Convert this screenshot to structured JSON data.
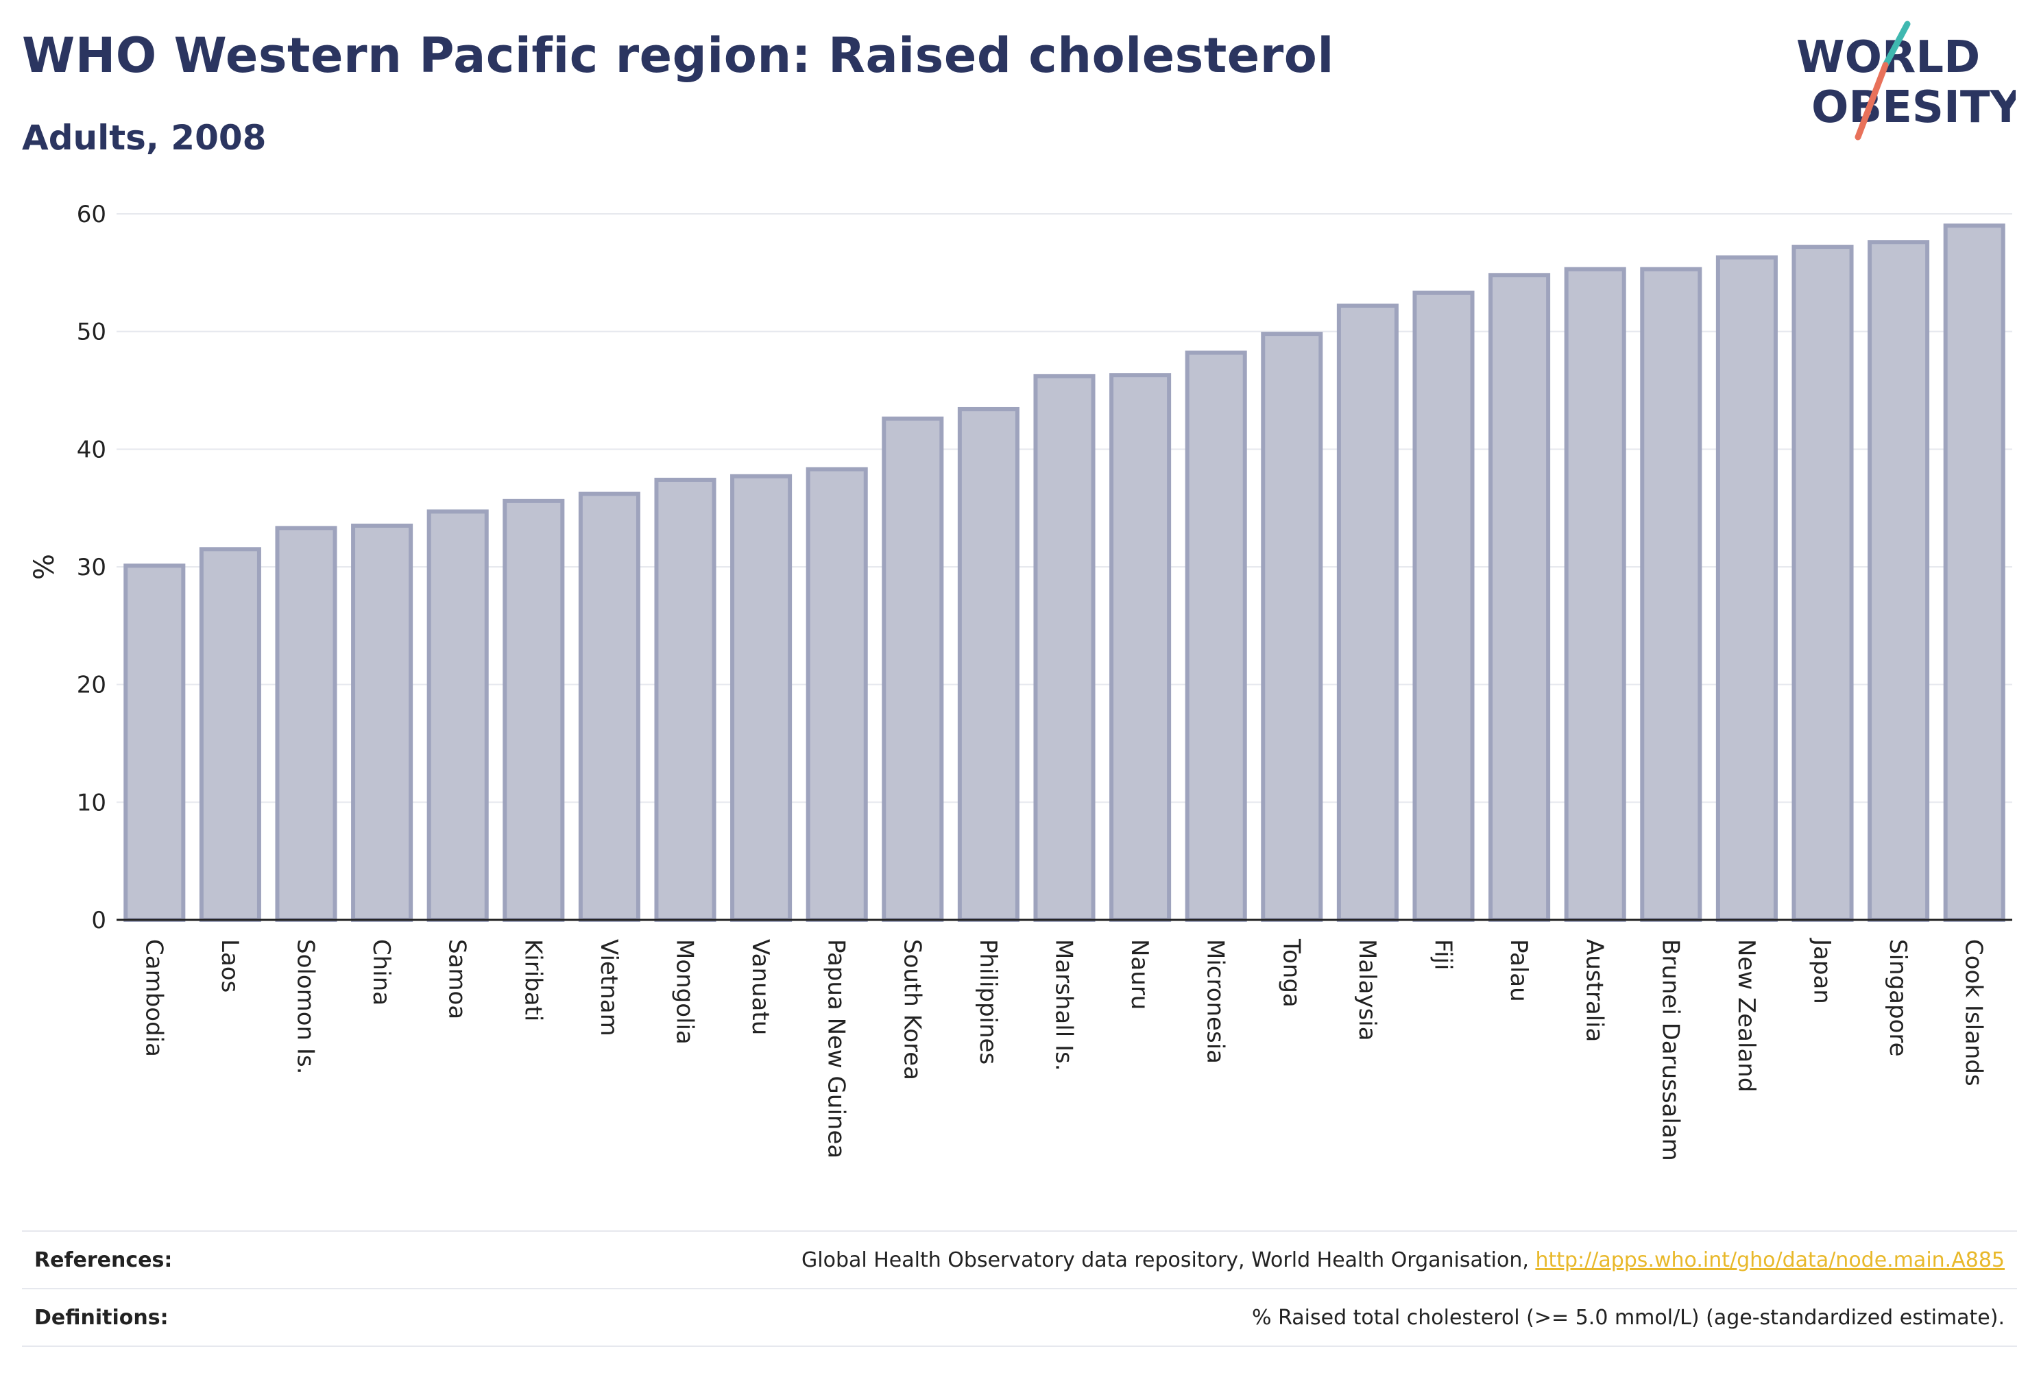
{
  "header": {
    "title": "WHO Western Pacific region: Raised cholesterol",
    "subtitle": "Adults, 2008"
  },
  "logo": {
    "line1": "WORLD",
    "line2": "OBESITY"
  },
  "chart_data": {
    "type": "bar",
    "categories": [
      "Cambodia",
      "Laos",
      "Solomon Is.",
      "China",
      "Samoa",
      "Kiribati",
      "Vietnam",
      "Mongolia",
      "Vanuatu",
      "Papua New Guinea",
      "South Korea",
      "Philippines",
      "Marshall Is.",
      "Nauru",
      "Micronesia",
      "Tonga",
      "Malaysia",
      "Fiji",
      "Palau",
      "Australia",
      "Brunei Darussalam",
      "New Zealand",
      "Japan",
      "Singapore",
      "Cook Islands"
    ],
    "values": [
      30.1,
      31.5,
      33.3,
      33.5,
      34.7,
      35.6,
      36.2,
      37.4,
      37.7,
      38.3,
      42.6,
      43.4,
      46.2,
      46.3,
      48.2,
      49.8,
      52.2,
      53.3,
      54.8,
      55.3,
      55.3,
      56.3,
      57.2,
      57.6,
      59.0
    ],
    "ylabel": "%",
    "ylim": [
      0,
      60
    ],
    "yticks": [
      0,
      10,
      20,
      30,
      40,
      50,
      60
    ],
    "grid": true,
    "colors": {
      "bar_fill": "#bfc2d1",
      "bar_stroke": "#9ea3bd",
      "grid": "#e6e8ee",
      "axis": "#222222"
    }
  },
  "footer": {
    "references_label": "References:",
    "references_text": "Global Health Observatory data repository, World Health Organisation, ",
    "references_link": "http://apps.who.int/gho/data/node.main.A885",
    "definitions_label": "Definitions:",
    "definitions_text": "% Raised total cholesterol (>= 5.0 mmol/L) (age-standardized estimate)."
  }
}
